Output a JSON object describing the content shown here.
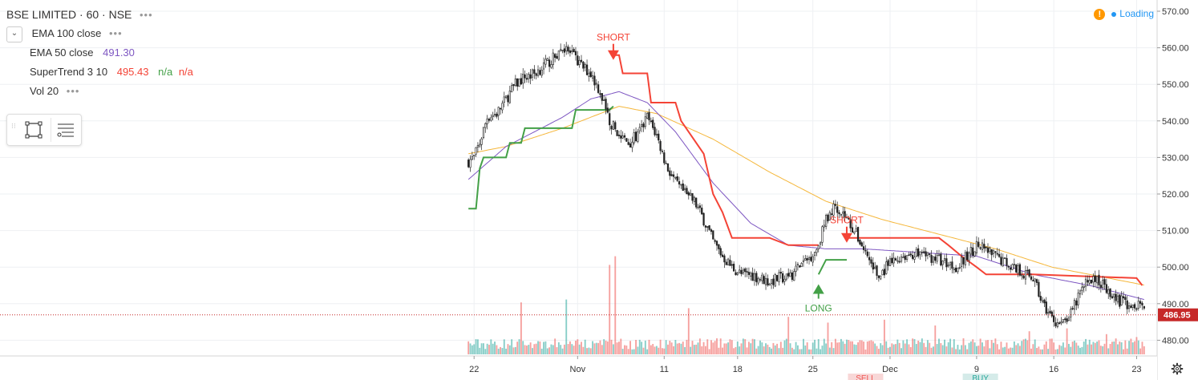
{
  "legend": {
    "title": "BSE LIMITED · 60 · NSE",
    "title_dots": "•••",
    "ema100_label": "EMA 100 close",
    "ema50_label": "EMA 50 close",
    "ema50_value": "491.30",
    "supertrend_label": "SuperTrend 3 10",
    "supertrend_value": "495.43",
    "supertrend_na1": "n/a",
    "supertrend_na2": "n/a",
    "vol_label": "Vol 20",
    "dots": "•••"
  },
  "status": {
    "warn": "!",
    "loading": "Loading"
  },
  "colors": {
    "up": "#26a69a",
    "down": "#ef5350",
    "ema50": "#7e57c2",
    "ema100": "#f5b73b",
    "st_up": "#43a047",
    "st_down": "#f44336",
    "price_line": "#c62828"
  },
  "chart_data": {
    "type": "candlestick",
    "price_axis": {
      "ticks": [
        570,
        560,
        550,
        540,
        530,
        520,
        510,
        500,
        490,
        480
      ],
      "labels": [
        "570.00",
        "560.00",
        "550.00",
        "540.00",
        "530.00",
        "520.00",
        "510.00",
        "500.00",
        "490.00",
        "480.00"
      ],
      "ylim": [
        476,
        572
      ]
    },
    "last_price": 486.95,
    "last_price_label": "486.95",
    "time_axis": {
      "labels": [
        "22",
        "Nov",
        "11",
        "18",
        "25",
        "Dec",
        "9",
        "16",
        "23"
      ],
      "bar_index": [
        3,
        58,
        104,
        143,
        183,
        224,
        270,
        311,
        355
      ]
    },
    "num_bars": 360,
    "close_anchors": [
      [
        0,
        529
      ],
      [
        3,
        530
      ],
      [
        6,
        534
      ],
      [
        10,
        541
      ],
      [
        15,
        542
      ],
      [
        20,
        546
      ],
      [
        25,
        550
      ],
      [
        30,
        552
      ],
      [
        35,
        553
      ],
      [
        40,
        555
      ],
      [
        45,
        557
      ],
      [
        50,
        560
      ],
      [
        55,
        558
      ],
      [
        60,
        555
      ],
      [
        65,
        553
      ],
      [
        70,
        548
      ],
      [
        75,
        540
      ],
      [
        80,
        536
      ],
      [
        85,
        534
      ],
      [
        90,
        536
      ],
      [
        95,
        541
      ],
      [
        100,
        536
      ],
      [
        105,
        528
      ],
      [
        110,
        523
      ],
      [
        115,
        520
      ],
      [
        120,
        518
      ],
      [
        125,
        513
      ],
      [
        130,
        507
      ],
      [
        135,
        503
      ],
      [
        140,
        500
      ],
      [
        145,
        498
      ],
      [
        150,
        498
      ],
      [
        155,
        497
      ],
      [
        160,
        496
      ],
      [
        165,
        497
      ],
      [
        170,
        497
      ],
      [
        175,
        500
      ],
      [
        180,
        502
      ],
      [
        185,
        505
      ],
      [
        190,
        513
      ],
      [
        195,
        517
      ],
      [
        200,
        514
      ],
      [
        205,
        510
      ],
      [
        210,
        505
      ],
      [
        215,
        500
      ],
      [
        218,
        497
      ],
      [
        222,
        500
      ],
      [
        230,
        503
      ],
      [
        240,
        504
      ],
      [
        250,
        502
      ],
      [
        260,
        500
      ],
      [
        270,
        506
      ],
      [
        280,
        503
      ],
      [
        290,
        500
      ],
      [
        300,
        497
      ],
      [
        305,
        490
      ],
      [
        310,
        486
      ],
      [
        315,
        484
      ],
      [
        320,
        487
      ],
      [
        325,
        493
      ],
      [
        330,
        497
      ],
      [
        335,
        496
      ],
      [
        340,
        494
      ],
      [
        345,
        491
      ],
      [
        350,
        490
      ],
      [
        355,
        490
      ],
      [
        360,
        487
      ]
    ],
    "vol_spikes": [
      [
        28,
        18
      ],
      [
        52,
        19
      ],
      [
        75,
        31
      ],
      [
        78,
        34
      ],
      [
        117,
        16
      ],
      [
        170,
        13
      ],
      [
        191,
        11
      ],
      [
        221,
        12
      ],
      [
        248,
        10
      ],
      [
        298,
        8
      ],
      [
        318,
        9
      ],
      [
        339,
        7
      ],
      [
        355,
        6
      ]
    ],
    "ema50_anchors": [
      [
        0,
        524
      ],
      [
        20,
        533
      ],
      [
        50,
        541
      ],
      [
        65,
        546
      ],
      [
        80,
        548
      ],
      [
        95,
        545
      ],
      [
        110,
        537
      ],
      [
        130,
        523
      ],
      [
        150,
        512
      ],
      [
        170,
        506
      ],
      [
        190,
        505
      ],
      [
        210,
        505
      ],
      [
        240,
        504
      ],
      [
        270,
        503
      ],
      [
        300,
        498
      ],
      [
        330,
        495
      ],
      [
        360,
        491
      ]
    ],
    "ema100_anchors": [
      [
        0,
        531
      ],
      [
        20,
        533
      ],
      [
        50,
        538
      ],
      [
        70,
        542
      ],
      [
        80,
        544
      ],
      [
        100,
        542
      ],
      [
        130,
        535
      ],
      [
        160,
        526
      ],
      [
        190,
        518
      ],
      [
        220,
        513
      ],
      [
        250,
        509
      ],
      [
        280,
        505
      ],
      [
        310,
        500
      ],
      [
        340,
        497
      ],
      [
        360,
        495
      ]
    ],
    "supertrend_segments": [
      {
        "trend": "up",
        "points": [
          [
            0,
            516
          ],
          [
            4,
            516
          ],
          [
            6,
            527
          ],
          [
            8,
            530
          ],
          [
            20,
            530
          ],
          [
            22,
            534
          ],
          [
            28,
            534
          ],
          [
            30,
            538
          ],
          [
            55,
            538
          ],
          [
            57,
            543
          ],
          [
            75,
            543
          ],
          [
            77,
            544
          ]
        ]
      },
      {
        "trend": "down",
        "points": [
          [
            77,
            558
          ],
          [
            80,
            558
          ],
          [
            82,
            553
          ],
          [
            95,
            553
          ],
          [
            97,
            545
          ],
          [
            110,
            545
          ],
          [
            113,
            540
          ],
          [
            125,
            531
          ],
          [
            130,
            520
          ],
          [
            135,
            515
          ],
          [
            140,
            508
          ],
          [
            160,
            508
          ],
          [
            170,
            506
          ],
          [
            186,
            506
          ]
        ]
      },
      {
        "trend": "up",
        "points": [
          [
            186,
            498
          ],
          [
            190,
            502
          ],
          [
            201,
            502
          ]
        ]
      },
      {
        "trend": "down",
        "points": [
          [
            201,
            508
          ],
          [
            250,
            508
          ],
          [
            255,
            506
          ],
          [
            262,
            503
          ],
          [
            270,
            500
          ],
          [
            275,
            498
          ],
          [
            290,
            498
          ],
          [
            300,
            498
          ],
          [
            355,
            497
          ],
          [
            358,
            495
          ]
        ]
      }
    ],
    "signals": [
      {
        "type": "short",
        "label": "SHORT",
        "bar": 77,
        "price": 558
      },
      {
        "type": "long",
        "label": "LONG",
        "bar": 186,
        "price": 494
      },
      {
        "type": "short",
        "label": "SHORT",
        "bar": 201,
        "price": 508
      }
    ],
    "bottom_tags": [
      {
        "label": "SELL",
        "bar": 211
      },
      {
        "label": "BUY",
        "bar": 272
      }
    ]
  }
}
